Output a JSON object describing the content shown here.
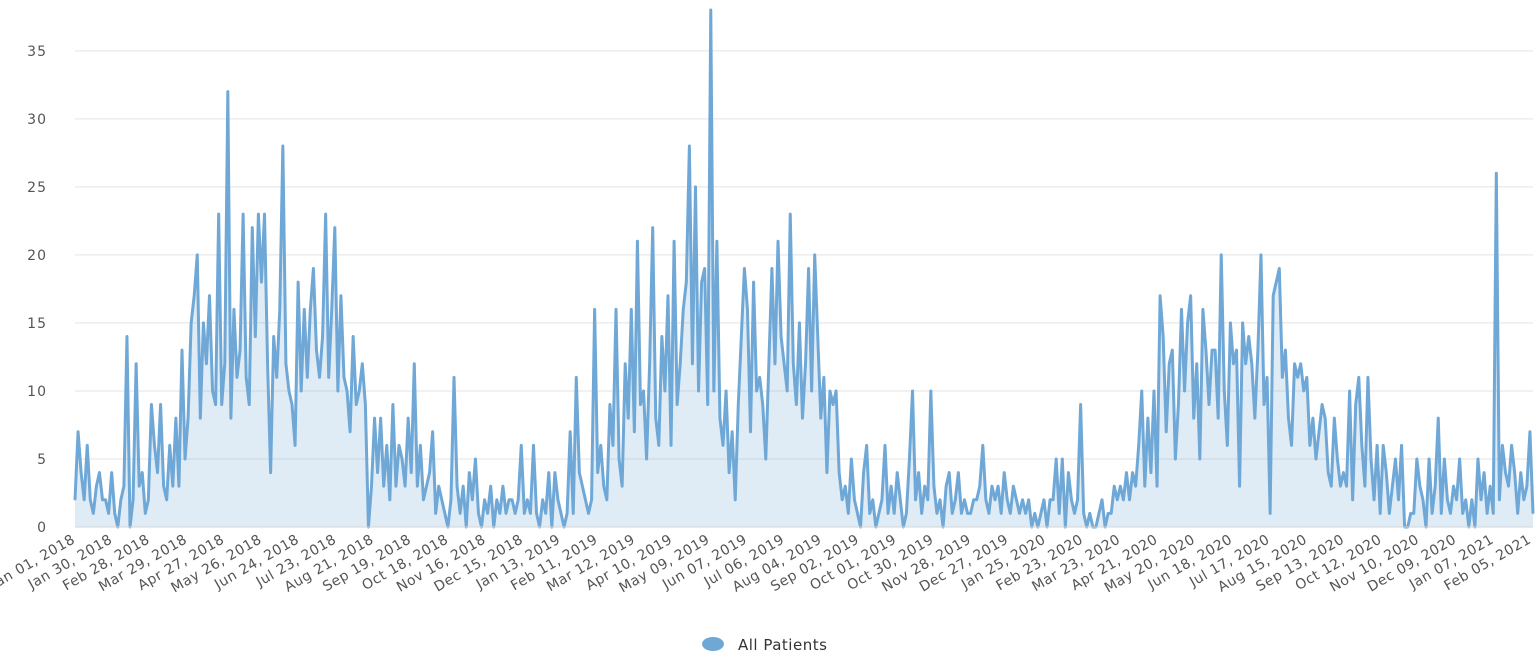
{
  "chart_data": {
    "type": "area",
    "title": "",
    "xlabel": "",
    "ylabel": "",
    "ylim": [
      0,
      38
    ],
    "y_ticks": [
      0,
      5,
      10,
      15,
      20,
      25,
      30,
      35
    ],
    "grid": "horizontal",
    "legend_position": "bottom-center",
    "x_tick_labels": [
      "Jan 01, 2018",
      "Jan 30, 2018",
      "Feb 28, 2018",
      "Mar 29, 2018",
      "Apr 27, 2018",
      "May 26, 2018",
      "Jun 24, 2018",
      "Jul 23, 2018",
      "Aug 21, 2018",
      "Sep 19, 2018",
      "Oct 18, 2018",
      "Nov 16, 2018",
      "Dec 15, 2018",
      "Jan 13, 2019",
      "Feb 11, 2019",
      "Mar 12, 2019",
      "Apr 10, 2019",
      "May 09, 2019",
      "Jun 07, 2019",
      "Jul 06, 2019",
      "Aug 04, 2019",
      "Sep 02, 2019",
      "Oct 01, 2019",
      "Oct 30, 2019",
      "Nov 28, 2019",
      "Dec 27, 2019",
      "Jan 25, 2020",
      "Feb 23, 2020",
      "Mar 23, 2020",
      "Apr 21, 2020",
      "May 20, 2020",
      "Jun 18, 2020",
      "Jul 17, 2020",
      "Aug 15, 2020",
      "Sep 13, 2020",
      "Oct 12, 2020",
      "Nov 10, 2020",
      "Dec 09, 2020",
      "Jan 07, 2021",
      "Feb 05, 2021"
    ],
    "series": [
      {
        "name": "All Patients",
        "color": "#6fa8d6",
        "x_start": "Jan 01, 2018",
        "x_step_days": 4,
        "values": [
          2,
          7,
          4,
          2,
          6,
          2,
          1,
          3,
          4,
          2,
          2,
          1,
          4,
          1,
          0,
          2,
          3,
          14,
          0,
          2,
          12,
          3,
          4,
          1,
          2,
          9,
          6,
          4,
          9,
          3,
          2,
          6,
          3,
          8,
          3,
          13,
          5,
          8,
          15,
          17,
          20,
          8,
          15,
          12,
          17,
          10,
          9,
          23,
          9,
          12,
          32,
          8,
          16,
          11,
          13,
          23,
          11,
          9,
          22,
          14,
          23,
          18,
          23,
          12,
          4,
          14,
          11,
          16,
          28,
          12,
          10,
          9,
          6,
          18,
          10,
          16,
          11,
          16,
          19,
          13,
          11,
          14,
          23,
          11,
          16,
          22,
          10,
          17,
          11,
          10,
          7,
          14,
          9,
          10,
          12,
          9,
          0,
          3,
          8,
          4,
          8,
          3,
          6,
          2,
          9,
          3,
          6,
          5,
          3,
          8,
          4,
          12,
          3,
          6,
          2,
          3,
          4,
          7,
          1,
          3,
          2,
          1,
          0,
          2,
          11,
          3,
          1,
          3,
          0,
          4,
          2,
          5,
          1,
          0,
          2,
          1,
          3,
          0,
          2,
          1,
          3,
          1,
          2,
          2,
          1,
          2,
          6,
          1,
          2,
          1,
          6,
          1,
          0,
          2,
          1,
          4,
          0,
          4,
          2,
          1,
          0,
          1,
          7,
          1,
          11,
          4,
          3,
          2,
          1,
          2,
          16,
          4,
          6,
          3,
          2,
          9,
          6,
          16,
          5,
          3,
          12,
          8,
          16,
          7,
          21,
          9,
          10,
          5,
          12,
          22,
          8,
          6,
          14,
          10,
          17,
          6,
          21,
          9,
          12,
          16,
          18,
          28,
          12,
          25,
          10,
          18,
          19,
          9,
          38,
          10,
          21,
          8,
          6,
          10,
          4,
          7,
          2,
          9,
          14,
          19,
          16,
          7,
          18,
          10,
          11,
          9,
          5,
          12,
          19,
          12,
          21,
          14,
          12,
          10,
          23,
          12,
          9,
          15,
          8,
          12,
          19,
          10,
          20,
          14,
          8,
          11,
          4,
          10,
          9,
          10,
          4,
          2,
          3,
          1,
          5,
          2,
          1,
          0,
          4,
          6,
          1,
          2,
          0,
          1,
          2,
          6,
          1,
          3,
          1,
          4,
          2,
          0,
          1,
          5,
          10,
          2,
          4,
          1,
          3,
          2,
          10,
          3,
          1,
          2,
          0,
          3,
          4,
          1,
          2,
          4,
          1,
          2,
          1,
          1,
          2,
          2,
          3,
          6,
          2,
          1,
          3,
          2,
          3,
          1,
          4,
          2,
          1,
          3,
          2,
          1,
          2,
          1,
          2,
          0,
          1,
          0,
          1,
          2,
          0,
          2,
          2,
          5,
          1,
          5,
          0,
          4,
          2,
          1,
          2,
          9,
          1,
          0,
          1,
          0,
          0,
          1,
          2,
          0,
          1,
          1,
          3,
          2,
          3,
          2,
          4,
          2,
          4,
          3,
          6,
          10,
          3,
          8,
          4,
          10,
          3,
          17,
          14,
          7,
          12,
          13,
          5,
          9,
          16,
          10,
          15,
          17,
          8,
          12,
          5,
          16,
          13,
          9,
          13,
          13,
          8,
          20,
          10,
          6,
          15,
          12,
          13,
          3,
          15,
          12,
          14,
          12,
          8,
          13,
          20,
          9,
          11,
          1,
          17,
          18,
          19,
          11,
          13,
          8,
          6,
          12,
          11,
          12,
          10,
          11,
          6,
          8,
          5,
          7,
          9,
          8,
          4,
          3,
          8,
          5,
          3,
          4,
          3,
          10,
          2,
          9,
          11,
          6,
          3,
          11,
          5,
          2,
          6,
          1,
          6,
          4,
          1,
          3,
          5,
          2,
          6,
          0,
          0,
          1,
          1,
          5,
          3,
          2,
          0,
          5,
          1,
          3,
          8,
          1,
          5,
          2,
          1,
          3,
          2,
          5,
          1,
          2,
          0,
          2,
          0,
          5,
          2,
          4,
          1,
          3,
          1,
          26,
          2,
          6,
          4,
          3,
          6,
          4,
          1,
          4,
          2,
          3,
          7,
          1
        ]
      }
    ]
  }
}
